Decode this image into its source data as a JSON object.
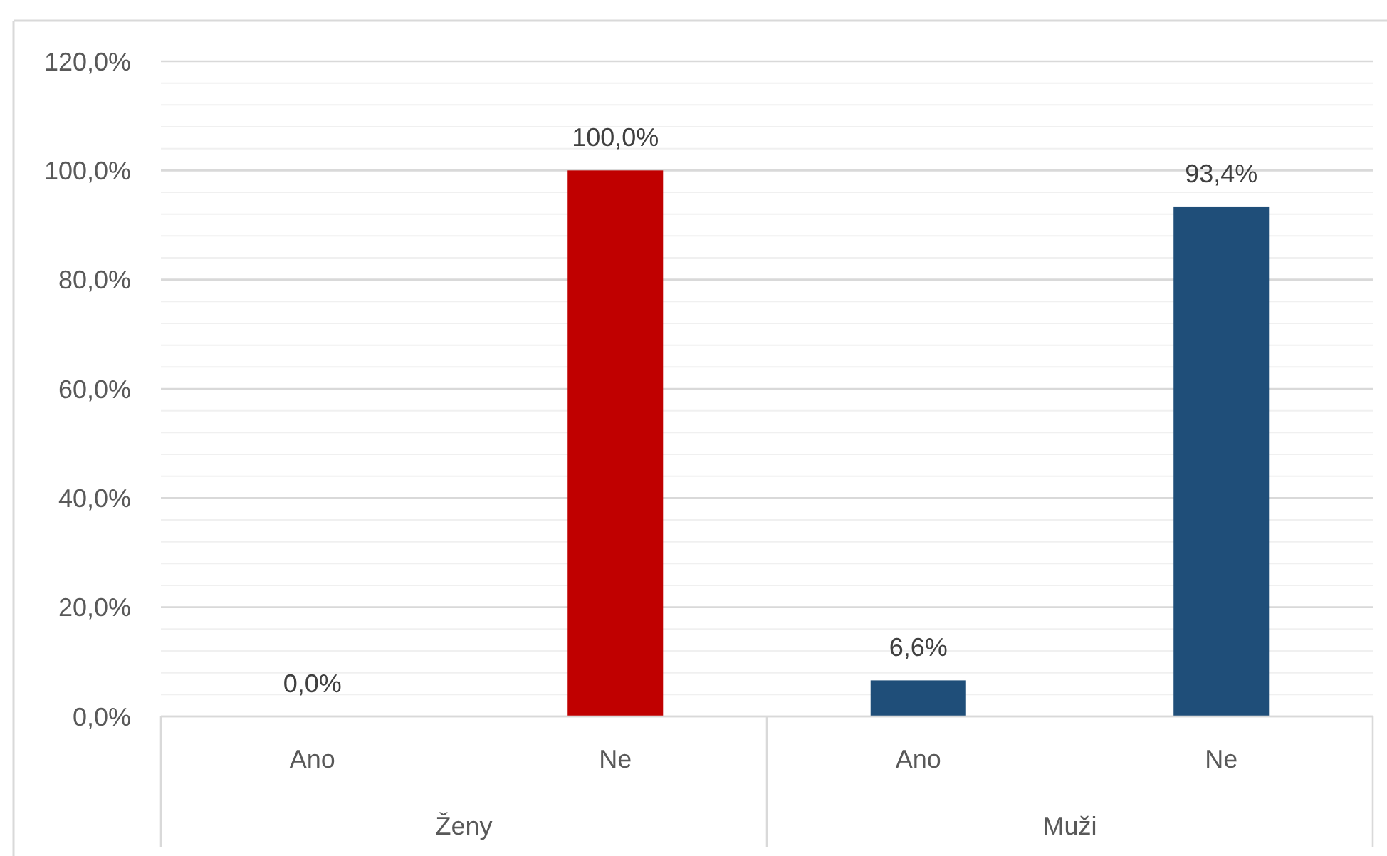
{
  "chart_data": {
    "type": "bar",
    "categories": [
      "Ano",
      "Ne",
      "Ano",
      "Ne"
    ],
    "series": [
      {
        "color": "#c00000",
        "values": [
          0,
          100,
          null,
          null
        ],
        "value_labels": [
          "0,0%",
          "100,0%",
          null,
          null
        ]
      },
      {
        "color": "#1f4e79",
        "values": [
          null,
          null,
          6.6,
          93.4
        ],
        "value_labels": [
          null,
          null,
          "6,6%",
          "93,4%"
        ]
      }
    ],
    "annotations": [
      "Ženy",
      "Muži"
    ],
    "ylim": [
      0,
      120
    ],
    "yticks": [
      {
        "value": 0,
        "label": "0,0%"
      },
      {
        "value": 4,
        "label": null
      },
      {
        "value": 8,
        "label": null
      },
      {
        "value": 12,
        "label": null
      },
      {
        "value": 16,
        "label": null
      },
      {
        "value": 20,
        "label": "20,0%"
      },
      {
        "value": 24,
        "label": null
      },
      {
        "value": 28,
        "label": null
      },
      {
        "value": 32,
        "label": null
      },
      {
        "value": 36,
        "label": null
      },
      {
        "value": 40,
        "label": "40,0%"
      },
      {
        "value": 44,
        "label": null
      },
      {
        "value": 48,
        "label": null
      },
      {
        "value": 52,
        "label": null
      },
      {
        "value": 56,
        "label": null
      },
      {
        "value": 60,
        "label": "60,0%"
      },
      {
        "value": 64,
        "label": null
      },
      {
        "value": 68,
        "label": null
      },
      {
        "value": 72,
        "label": null
      },
      {
        "value": 76,
        "label": null
      },
      {
        "value": 80,
        "label": "80,0%"
      },
      {
        "value": 84,
        "label": null
      },
      {
        "value": 88,
        "label": null
      },
      {
        "value": 92,
        "label": null
      },
      {
        "value": 96,
        "label": null
      },
      {
        "value": 100,
        "label": "100,0%"
      },
      {
        "value": 104,
        "label": null
      },
      {
        "value": 108,
        "label": null
      },
      {
        "value": 112,
        "label": null
      },
      {
        "value": 116,
        "label": null
      },
      {
        "value": 120,
        "label": "120,0%"
      }
    ],
    "grid": "y"
  }
}
